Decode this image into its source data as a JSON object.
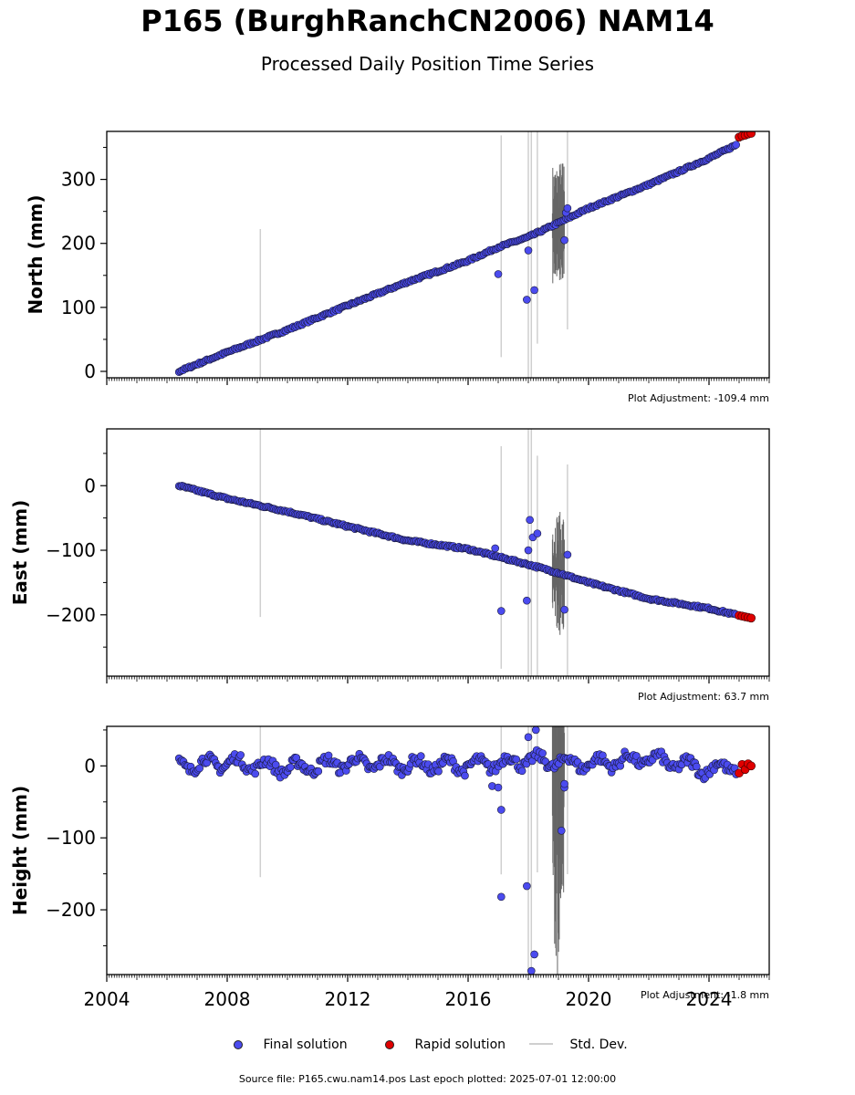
{
  "title": "P165 (BurghRanchCN2006) NAM14",
  "subtitle": "Processed Daily Position Time Series",
  "source_text": "Source file: P165.cwu.nam14.pos  Last epoch plotted: 2025-07-01 12:00:00",
  "legend": [
    {
      "label": "Final solution",
      "color": "#4b4bef"
    },
    {
      "label": "Rapid solution",
      "color": "#e00000"
    },
    {
      "label": "Std. Dev.",
      "color": "#cfcfcf"
    }
  ],
  "chart_data": [
    {
      "type": "scatter",
      "ylabel": "North (mm)",
      "xlim": [
        2004.0,
        2026.0
      ],
      "ylim": [
        -10,
        375
      ],
      "yticks": [
        0,
        100,
        200,
        300
      ],
      "adjustment": "Plot Adjustment: -109.4 mm",
      "final_series": {
        "name": "Final solution",
        "x": [
          2006.4,
          2008.0,
          2010.0,
          2012.0,
          2014.0,
          2016.0,
          2017.0,
          2018.0,
          2019.0,
          2020.0,
          2022.0,
          2024.0,
          2024.9
        ],
        "y": [
          0,
          30,
          65,
          103,
          140,
          173,
          194,
          210,
          232,
          255,
          292,
          333,
          354
        ]
      },
      "rapid_series": {
        "name": "Rapid solution",
        "x": [
          2025.0,
          2025.1,
          2025.2,
          2025.3,
          2025.4
        ],
        "y": [
          366,
          368,
          369,
          371,
          372
        ]
      },
      "outliers_x": [
        2017.0,
        2017.95,
        2018.0,
        2018.2,
        2019.2,
        2019.25,
        2019.3
      ],
      "outliers_y": [
        152,
        112,
        189,
        127,
        205,
        248,
        255
      ]
    },
    {
      "type": "scatter",
      "ylabel": "East (mm)",
      "xlim": [
        2004.0,
        2026.0
      ],
      "ylim": [
        -295,
        88
      ],
      "yticks": [
        -200,
        -100,
        0
      ],
      "adjustment": "Plot Adjustment: 63.7 mm",
      "final_series": {
        "name": "Final solution",
        "x": [
          2006.4,
          2008.0,
          2010.0,
          2012.0,
          2014.0,
          2016.0,
          2017.0,
          2018.0,
          2019.0,
          2020.0,
          2022.0,
          2024.0,
          2024.9
        ],
        "y": [
          0,
          -20,
          -40,
          -63,
          -85,
          -98,
          -110,
          -122,
          -135,
          -150,
          -175,
          -190,
          -200
        ]
      },
      "rapid_series": {
        "name": "Rapid solution",
        "x": [
          2025.0,
          2025.1,
          2025.2,
          2025.3,
          2025.4
        ],
        "y": [
          -201,
          -202,
          -203,
          -204,
          -205
        ]
      },
      "outliers_x": [
        2016.9,
        2017.1,
        2017.95,
        2018.0,
        2018.05,
        2018.15,
        2018.3,
        2019.2,
        2019.3
      ],
      "outliers_y": [
        -97,
        -194,
        -178,
        -100,
        -53,
        -80,
        -74,
        -192,
        -107
      ]
    },
    {
      "type": "scatter",
      "ylabel": "Height (mm)",
      "xlim": [
        2004.0,
        2026.0
      ],
      "ylim": [
        -290,
        55
      ],
      "yticks": [
        -200,
        -100,
        0
      ],
      "adjustment": "Plot Adjustment: -1.8 mm",
      "final_series": {
        "name": "Final solution",
        "x": [
          2006.4,
          2008.0,
          2010.0,
          2012.0,
          2014.0,
          2016.0,
          2018.0,
          2020.0,
          2022.0,
          2024.0,
          2024.9
        ],
        "y": [
          0,
          5,
          -3,
          4,
          2,
          0,
          8,
          3,
          10,
          -5,
          0
        ]
      },
      "rapid_series": {
        "name": "Rapid solution",
        "x": [
          2025.0,
          2025.1,
          2025.2,
          2025.3,
          2025.4
        ],
        "y": [
          -10,
          2,
          -5,
          3,
          0
        ]
      },
      "outliers_x": [
        2016.8,
        2017.0,
        2017.1,
        2017.1,
        2017.95,
        2018.0,
        2018.1,
        2018.2,
        2018.25,
        2019.1,
        2019.2,
        2019.2
      ],
      "outliers_y": [
        -28,
        -30,
        -182,
        -61,
        -167,
        40,
        -285,
        -262,
        50,
        -90,
        -30,
        -25
      ]
    }
  ],
  "x_tick_labels": [
    "2004",
    "2008",
    "2012",
    "2016",
    "2020",
    "2024"
  ]
}
